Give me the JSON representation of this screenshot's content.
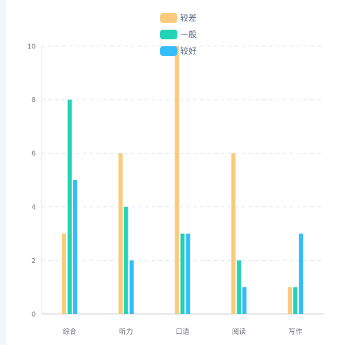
{
  "chart_data": {
    "type": "bar",
    "categories": [
      "综合",
      "听力",
      "口语",
      "阅读",
      "写作"
    ],
    "series": [
      {
        "name": "较差",
        "color": "#f9cb7b",
        "values": [
          3,
          6,
          10,
          6,
          1
        ]
      },
      {
        "name": "一般",
        "color": "#22d3b5",
        "values": [
          8,
          4,
          3,
          2,
          1
        ]
      },
      {
        "name": "较好",
        "color": "#33bdfa",
        "values": [
          5,
          2,
          3,
          1,
          3
        ]
      }
    ],
    "ylim": [
      0,
      10
    ],
    "yticks": [
      0,
      2,
      4,
      6,
      8,
      10
    ],
    "grid": true,
    "legend_position": "top-center"
  }
}
